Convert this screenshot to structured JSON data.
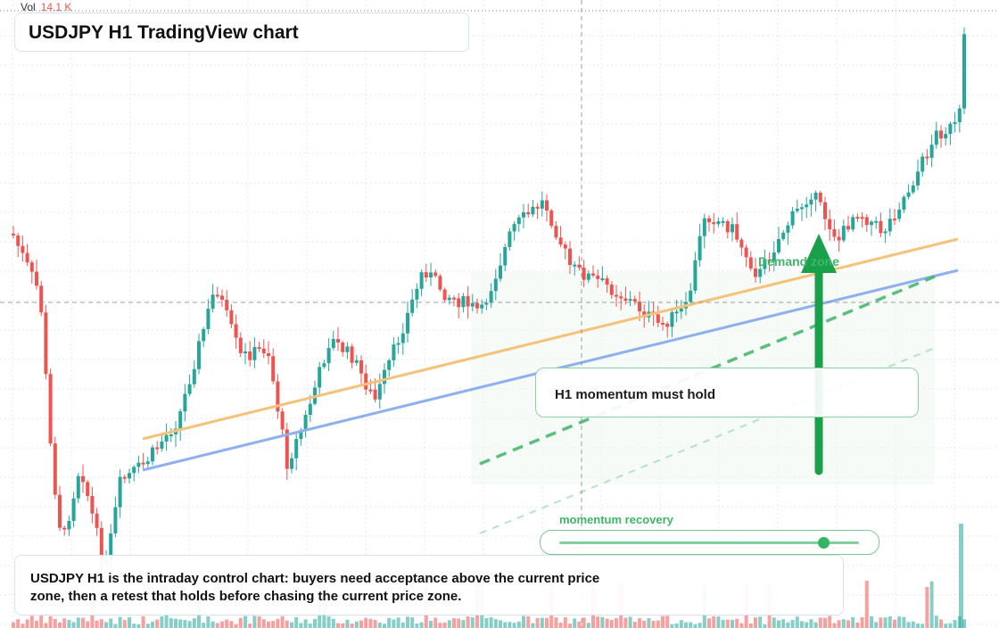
{
  "header": {
    "title": "USDJPY H1 TradingView chart"
  },
  "volume": {
    "label": "Vol",
    "value": "14.1 K"
  },
  "annotations": {
    "callout": "H1 momentum must hold",
    "demand_zone_label": "Demand zone",
    "slider_label": "momentum recovery",
    "slider_level": 0.88,
    "note": "USDJPY H1 is the intraday control chart: buyers need acceptance above the current price zone, then a retest that holds before chasing the current price zone."
  },
  "colors": {
    "bull": "#26a69a",
    "bear": "#ef5350",
    "trend_orange": "#f6c27a",
    "trend_blue": "#8fb0ef",
    "accent_green": "#19a04b"
  }
}
